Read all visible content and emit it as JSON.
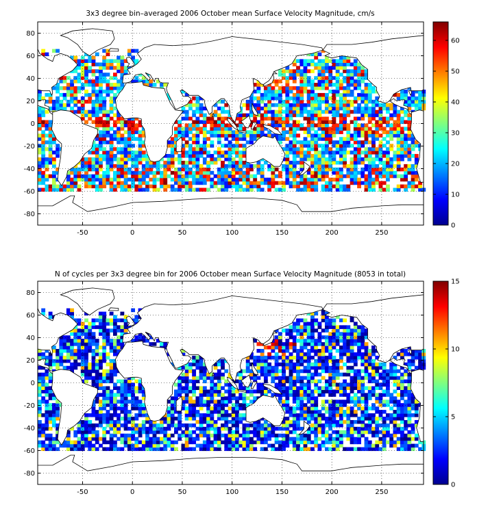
{
  "chart_data": [
    {
      "type": "heatmap",
      "title": "3x3 degree bin–averaged 2006 October mean Surface Velocity Magnitude, cm/s",
      "xlabel": "",
      "ylabel": "",
      "xlim": [
        -95,
        292
      ],
      "ylim": [
        -90,
        90
      ],
      "xticks": [
        "-50",
        "0",
        "50",
        "100",
        "150",
        "200",
        "250"
      ],
      "yticks": [
        "80",
        "60",
        "40",
        "20",
        "0",
        "-20",
        "-40",
        "-60",
        "-80"
      ],
      "colorbar": {
        "min": 0,
        "max": 66,
        "ticks": [
          "60",
          "50",
          "40",
          "30",
          "20",
          "10",
          "0"
        ]
      },
      "grid": true,
      "land_regions": [
        "North America",
        "South America",
        "Europe/Asia",
        "Africa",
        "Australia",
        "Antarctica",
        "Greenland"
      ]
    },
    {
      "type": "heatmap",
      "title": "N of cycles per 3x3 degree bin for 2006 October mean Surface Velocity Magnitude (8053 in total)",
      "xlabel": "",
      "ylabel": "",
      "xlim": [
        -95,
        292
      ],
      "ylim": [
        -90,
        90
      ],
      "xticks": [
        "-50",
        "0",
        "50",
        "100",
        "150",
        "200",
        "250"
      ],
      "yticks": [
        "80",
        "60",
        "40",
        "20",
        "0",
        "-20",
        "-40",
        "-60",
        "-80"
      ],
      "colorbar": {
        "min": 0,
        "max": 15,
        "ticks": [
          "15",
          "10",
          "5",
          "0"
        ]
      },
      "grid": true,
      "land_regions": [
        "North America",
        "South America",
        "Europe/Asia",
        "Africa",
        "Australia",
        "Antarctica",
        "Greenland"
      ]
    }
  ],
  "colormap": "jet"
}
